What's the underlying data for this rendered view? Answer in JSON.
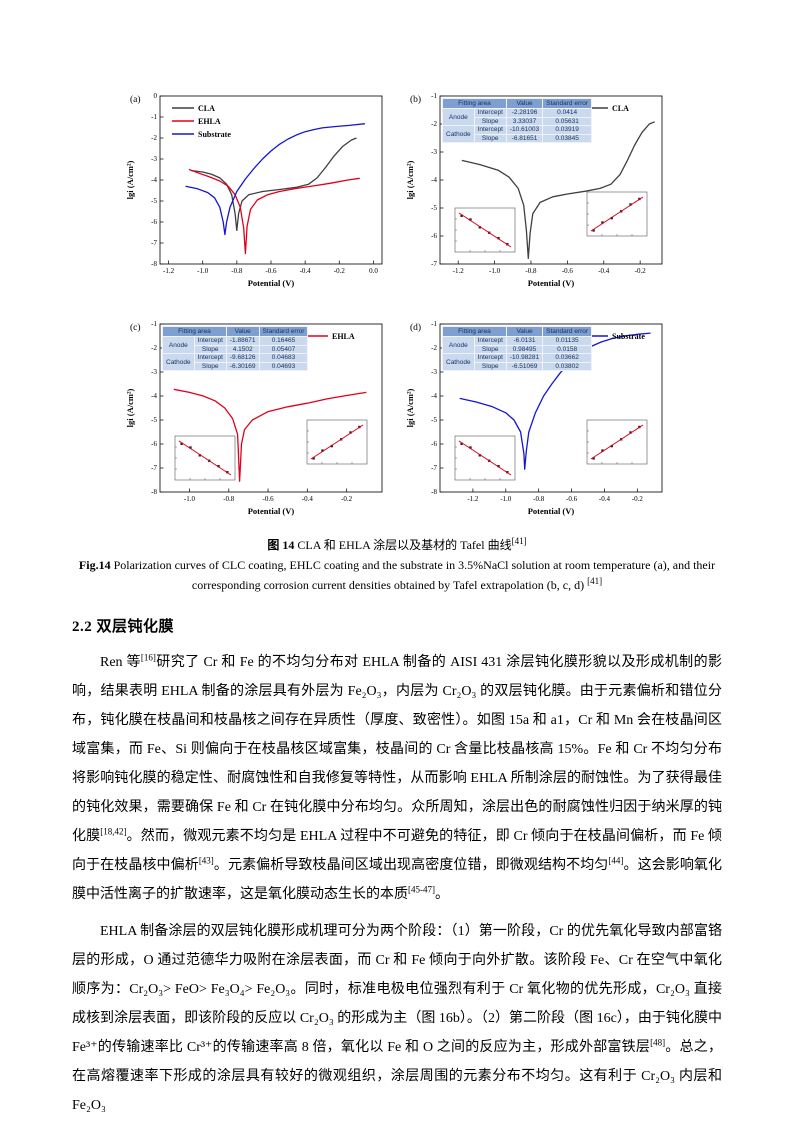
{
  "figure": {
    "caption_zh_label": "图 14",
    "caption_zh_text": " CLA 和 EHLA 涂层以及基材的 Tafel 曲线[41]",
    "caption_en_label": "Fig.14",
    "caption_en_text": " Polarization curves of CLC coating, EHLC coating and the substrate in 3.5%NaCl solution at room temperature (a), and their corresponding corrosion current densities obtained by Tafel extrapolation (b, c, d) [41]"
  },
  "section": {
    "heading": "2.2 双层钝化膜"
  },
  "paragraphs": [
    "Ren 等[16]研究了 Cr 和 Fe 的不均匀分布对 EHLA 制备的 AISI 431 涂层钝化膜形貌以及形成机制的影响，结果表明 EHLA 制备的涂层具有外层为 Fe₂O₃，内层为 Cr₂O₃ 的双层钝化膜。由于元素偏析和错位分布，钝化膜在枝晶间和枝晶核之间存在异质性（厚度、致密性）。如图 15a 和 a1，Cr 和 Mn 会在枝晶间区域富集，而 Fe、Si 则偏向于在枝晶核区域富集，枝晶间的 Cr 含量比枝晶核高 15%。Fe 和 Cr 不均匀分布将影响钝化膜的稳定性、耐腐蚀性和自我修复等特性，从而影响 EHLA 所制涂层的耐蚀性。为了获得最佳的钝化效果，需要确保 Fe 和 Cr 在钝化膜中分布均匀。众所周知，涂层出色的耐腐蚀性归因于纳米厚的钝化膜[18,42]。然而，微观元素不均匀是 EHLA 过程中不可避免的特征，即 Cr 倾向于在枝晶间偏析，而 Fe 倾向于在枝晶核中偏析[43]。元素偏析导致枝晶间区域出现高密度位错，即微观结构不均匀[44]。这会影响氧化膜中活性离子的扩散速率，这是氧化膜动态生长的本质[45-47]。",
    "EHLA 制备涂层的双层钝化膜形成机理可分为两个阶段：（1）第一阶段，Cr 的优先氧化导致内部富铬层的形成，O 通过范德华力吸附在涂层表面，而 Cr 和 Fe 倾向于向外扩散。该阶段 Fe、Cr 在空气中氧化顺序为：Cr₂O₃> FeO> Fe₃O₄> Fe₂O₃。同时，标准电极电位强烈有利于 Cr 氧化物的优先形成，Cr₂O₃ 直接成核到涂层表面，即该阶段的反应以 Cr₂O₃ 的形成为主（图 16b）。（2）第二阶段（图 16c），由于钝化膜中 Fe³⁺的传输速率比 Cr³⁺的传输速率高 8 倍，氧化以 Fe 和 O 之间的反应为主，形成外部富铁层[48]。总之，在高熔覆速率下形成的涂层具有较好的微观组织，涂层周围的元素分布不均匀。这有利于 Cr₂O₃ 内层和 Fe₂O₃"
  ],
  "colors": {
    "cla": "#3f3f3f",
    "ehla": "#e0001c",
    "substrate": "#1616cd",
    "table_header": "#7e9fd0",
    "table_body": "#cbd9ee"
  },
  "chart_data": [
    {
      "type": "line",
      "panel": "(a)",
      "xlabel": "Potential (V)",
      "ylabel": "lgi (A/cm²)",
      "xlim": [
        -1.25,
        0.05
      ],
      "ylim": [
        0,
        -8
      ],
      "xticks": [
        "-1.2",
        "-1.0",
        "-0.8",
        "-0.6",
        "-0.4",
        "-0.2",
        "0.0"
      ],
      "yticks": [
        "0",
        "-1",
        "-2",
        "-3",
        "-4",
        "-5",
        "-6",
        "-7",
        "-8"
      ],
      "legend": {
        "position": "top-left"
      },
      "series": [
        {
          "name": "CLA",
          "color": "#3f3f3f",
          "points": [
            [
              -1.07,
              -3.55
            ],
            [
              -1.0,
              -3.62
            ],
            [
              -0.95,
              -3.72
            ],
            [
              -0.9,
              -3.9
            ],
            [
              -0.86,
              -4.2
            ],
            [
              -0.83,
              -4.7
            ],
            [
              -0.81,
              -5.6
            ],
            [
              -0.8,
              -6.4
            ],
            [
              -0.79,
              -5.6
            ],
            [
              -0.77,
              -5.0
            ],
            [
              -0.73,
              -4.7
            ],
            [
              -0.65,
              -4.55
            ],
            [
              -0.55,
              -4.45
            ],
            [
              -0.45,
              -4.35
            ],
            [
              -0.38,
              -4.2
            ],
            [
              -0.33,
              -3.9
            ],
            [
              -0.28,
              -3.4
            ],
            [
              -0.23,
              -2.85
            ],
            [
              -0.18,
              -2.4
            ],
            [
              -0.13,
              -2.1
            ],
            [
              -0.1,
              -2.0
            ]
          ]
        },
        {
          "name": "EHLA",
          "color": "#e0001c",
          "points": [
            [
              -1.08,
              -3.5
            ],
            [
              -1.02,
              -3.68
            ],
            [
              -0.96,
              -3.85
            ],
            [
              -0.9,
              -4.05
            ],
            [
              -0.85,
              -4.3
            ],
            [
              -0.81,
              -4.7
            ],
            [
              -0.78,
              -5.3
            ],
            [
              -0.76,
              -6.3
            ],
            [
              -0.75,
              -7.5
            ],
            [
              -0.74,
              -6.2
            ],
            [
              -0.72,
              -5.4
            ],
            [
              -0.68,
              -4.95
            ],
            [
              -0.62,
              -4.7
            ],
            [
              -0.55,
              -4.55
            ],
            [
              -0.45,
              -4.4
            ],
            [
              -0.35,
              -4.28
            ],
            [
              -0.25,
              -4.15
            ],
            [
              -0.15,
              -4.0
            ],
            [
              -0.08,
              -3.92
            ]
          ]
        },
        {
          "name": "Substrate",
          "color": "#1616cd",
          "points": [
            [
              -1.1,
              -4.3
            ],
            [
              -1.03,
              -4.42
            ],
            [
              -0.97,
              -4.6
            ],
            [
              -0.93,
              -4.85
            ],
            [
              -0.9,
              -5.3
            ],
            [
              -0.88,
              -6.0
            ],
            [
              -0.87,
              -6.6
            ],
            [
              -0.86,
              -6.0
            ],
            [
              -0.84,
              -5.3
            ],
            [
              -0.8,
              -4.55
            ],
            [
              -0.75,
              -3.95
            ],
            [
              -0.7,
              -3.45
            ],
            [
              -0.65,
              -3.0
            ],
            [
              -0.6,
              -2.62
            ],
            [
              -0.55,
              -2.3
            ],
            [
              -0.5,
              -2.05
            ],
            [
              -0.45,
              -1.85
            ],
            [
              -0.4,
              -1.7
            ],
            [
              -0.35,
              -1.6
            ],
            [
              -0.3,
              -1.52
            ],
            [
              -0.22,
              -1.45
            ],
            [
              -0.14,
              -1.4
            ],
            [
              -0.05,
              -1.32
            ]
          ]
        }
      ]
    },
    {
      "type": "line",
      "panel": "(b)",
      "xlabel": "Potential (V)",
      "ylabel": "lgi (A/cm²)",
      "xlim": [
        -1.3,
        -0.08
      ],
      "ylim": [
        -1,
        -7
      ],
      "xticks": [
        "-1.2",
        "-1.0",
        "-0.8",
        "-0.6",
        "-0.4",
        "-0.2"
      ],
      "yticks": [
        "-1",
        "-2",
        "-3",
        "-4",
        "-5",
        "-6",
        "-7"
      ],
      "legend": {
        "position": "top-right"
      },
      "series": [
        {
          "name": "CLA",
          "color": "#3f3f3f",
          "points": [
            [
              -1.18,
              -3.3
            ],
            [
              -1.08,
              -3.45
            ],
            [
              -0.98,
              -3.65
            ],
            [
              -0.92,
              -3.9
            ],
            [
              -0.87,
              -4.3
            ],
            [
              -0.84,
              -4.9
            ],
            [
              -0.825,
              -5.8
            ],
            [
              -0.815,
              -6.8
            ],
            [
              -0.805,
              -5.9
            ],
            [
              -0.79,
              -5.2
            ],
            [
              -0.75,
              -4.8
            ],
            [
              -0.68,
              -4.6
            ],
            [
              -0.6,
              -4.5
            ],
            [
              -0.5,
              -4.4
            ],
            [
              -0.42,
              -4.3
            ],
            [
              -0.36,
              -4.15
            ],
            [
              -0.31,
              -3.8
            ],
            [
              -0.27,
              -3.3
            ],
            [
              -0.23,
              -2.75
            ],
            [
              -0.19,
              -2.3
            ],
            [
              -0.15,
              -2.0
            ],
            [
              -0.12,
              -1.92
            ]
          ]
        }
      ],
      "table": {
        "header": [
          "Fitting area",
          "Value",
          "Standard error"
        ],
        "rows": [
          {
            "group": "Anode",
            "param": "Intercept",
            "value": "-2.28196",
            "err": "0.0414"
          },
          {
            "group": "",
            "param": "Slope",
            "value": "3.33037",
            "err": "0.05631"
          },
          {
            "group": "Cathode",
            "param": "Intercept",
            "value": "-10.61003",
            "err": "0.03919"
          },
          {
            "group": "",
            "param": "Slope",
            "value": "-6.81651",
            "err": "0.03845"
          }
        ]
      },
      "insets": [
        {
          "position": "bottom-left",
          "trend": "descending"
        },
        {
          "position": "mid-right",
          "trend": "ascending"
        }
      ]
    },
    {
      "type": "line",
      "panel": "(c)",
      "xlabel": "Potential (V)",
      "ylabel": "lgi (A/cm²)",
      "xlim": [
        -1.15,
        -0.02
      ],
      "ylim": [
        -1,
        -8
      ],
      "xticks": [
        "-1.0",
        "-0.8",
        "-0.6",
        "-0.4",
        "-0.2"
      ],
      "yticks": [
        "-1",
        "-2",
        "-3",
        "-4",
        "-5",
        "-6",
        "-7",
        "-8"
      ],
      "legend": {
        "position": "top-right"
      },
      "series": [
        {
          "name": "EHLA",
          "color": "#e0001c",
          "points": [
            [
              -1.08,
              -3.72
            ],
            [
              -1.0,
              -3.85
            ],
            [
              -0.93,
              -4.0
            ],
            [
              -0.87,
              -4.2
            ],
            [
              -0.82,
              -4.5
            ],
            [
              -0.78,
              -4.95
            ],
            [
              -0.755,
              -5.6
            ],
            [
              -0.745,
              -7.55
            ],
            [
              -0.735,
              -6.0
            ],
            [
              -0.72,
              -5.4
            ],
            [
              -0.68,
              -5.0
            ],
            [
              -0.6,
              -4.65
            ],
            [
              -0.5,
              -4.45
            ],
            [
              -0.4,
              -4.3
            ],
            [
              -0.3,
              -4.12
            ],
            [
              -0.2,
              -3.98
            ],
            [
              -0.1,
              -3.85
            ]
          ]
        }
      ],
      "table": {
        "header": [
          "Fitting area",
          "Value",
          "Standard error"
        ],
        "rows": [
          {
            "group": "Anode",
            "param": "Intercept",
            "value": "-1.88671",
            "err": "0.16465"
          },
          {
            "group": "",
            "param": "Slope",
            "value": "4.1502",
            "err": "0.05407"
          },
          {
            "group": "Cathode",
            "param": "Intercept",
            "value": "-9.68126",
            "err": "0.04683"
          },
          {
            "group": "",
            "param": "Slope",
            "value": "-6.30169",
            "err": "0.04693"
          }
        ]
      },
      "insets": [
        {
          "position": "bottom-left",
          "trend": "descending"
        },
        {
          "position": "mid-right",
          "trend": "ascending"
        }
      ]
    },
    {
      "type": "line",
      "panel": "(d)",
      "xlabel": "Potential (V)",
      "ylabel": "lgi (A/cm²)",
      "xlim": [
        -1.4,
        -0.05
      ],
      "ylim": [
        -1,
        -8
      ],
      "xticks": [
        "-1.2",
        "-1.0",
        "-0.8",
        "-0.6",
        "-0.4",
        "-0.2"
      ],
      "yticks": [
        "-1",
        "-2",
        "-3",
        "-4",
        "-5",
        "-6",
        "-7",
        "-8"
      ],
      "legend": {
        "position": "top-right"
      },
      "series": [
        {
          "name": "Substrate",
          "color": "#1616cd",
          "points": [
            [
              -1.28,
              -4.1
            ],
            [
              -1.18,
              -4.25
            ],
            [
              -1.08,
              -4.45
            ],
            [
              -1.0,
              -4.7
            ],
            [
              -0.95,
              -5.0
            ],
            [
              -0.91,
              -5.5
            ],
            [
              -0.89,
              -6.4
            ],
            [
              -0.885,
              -7.05
            ],
            [
              -0.875,
              -6.3
            ],
            [
              -0.86,
              -5.5
            ],
            [
              -0.82,
              -4.7
            ],
            [
              -0.77,
              -4.0
            ],
            [
              -0.72,
              -3.5
            ],
            [
              -0.67,
              -3.05
            ],
            [
              -0.62,
              -2.65
            ],
            [
              -0.57,
              -2.35
            ],
            [
              -0.52,
              -2.1
            ],
            [
              -0.47,
              -1.9
            ],
            [
              -0.42,
              -1.75
            ],
            [
              -0.35,
              -1.6
            ],
            [
              -0.28,
              -1.5
            ],
            [
              -0.2,
              -1.43
            ],
            [
              -0.12,
              -1.38
            ]
          ]
        }
      ],
      "table": {
        "header": [
          "Fitting area",
          "Value",
          "Standard error"
        ],
        "rows": [
          {
            "group": "Anode",
            "param": "Intercept",
            "value": "-6.0131",
            "err": "0.01135"
          },
          {
            "group": "",
            "param": "Slope",
            "value": "0.98495",
            "err": "0.0158"
          },
          {
            "group": "Cathode",
            "param": "Intercept",
            "value": "-10.98281",
            "err": "0.03662"
          },
          {
            "group": "",
            "param": "Slope",
            "value": "-6.51069",
            "err": "0.03802"
          }
        ]
      },
      "insets": [
        {
          "position": "bottom-left",
          "trend": "descending"
        },
        {
          "position": "mid-right",
          "trend": "ascending"
        }
      ]
    }
  ]
}
